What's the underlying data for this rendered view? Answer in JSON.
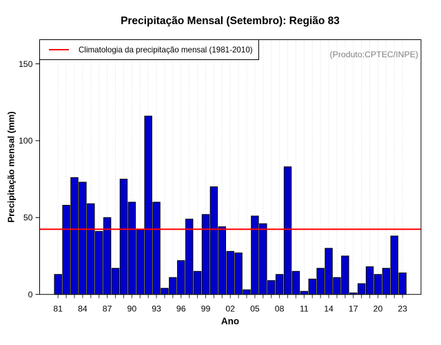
{
  "chart_data": {
    "type": "bar",
    "title": "Precipitação Mensal (Setembro): Região 83",
    "xlabel": "Ano",
    "ylabel": "Precipitação mensal (mm)",
    "ylim": [
      0,
      165
    ],
    "yticks": [
      0,
      50,
      100,
      150
    ],
    "categories": [
      "1981",
      "1982",
      "1983",
      "1984",
      "1985",
      "1986",
      "1987",
      "1988",
      "1989",
      "1990",
      "1991",
      "1992",
      "1993",
      "1994",
      "1995",
      "1996",
      "1997",
      "1998",
      "1999",
      "2000",
      "2001",
      "2002",
      "2003",
      "2004",
      "2005",
      "2006",
      "2007",
      "2008",
      "2009",
      "2010",
      "2011",
      "2012",
      "2013",
      "2014",
      "2015",
      "2016",
      "2017",
      "2018",
      "2019",
      "2020",
      "2021",
      "2022",
      "2023"
    ],
    "values": [
      13,
      58,
      76,
      73,
      59,
      41,
      50,
      17,
      75,
      60,
      42,
      116,
      60,
      4,
      11,
      22,
      49,
      15,
      52,
      70,
      44,
      28,
      27,
      3,
      51,
      46,
      9,
      13,
      83,
      15,
      2,
      10,
      17,
      30,
      11,
      25,
      1,
      7,
      18,
      13,
      17,
      38,
      14
    ],
    "xtick_labels": [
      "81",
      "84",
      "87",
      "90",
      "93",
      "96",
      "99",
      "02",
      "05",
      "08",
      "11",
      "14",
      "17",
      "20",
      "23"
    ],
    "xtick_step": 3,
    "climatology_value": 42.4,
    "legend_label": "Climatologia da precipitação mensal (1981-2010)",
    "annotation": "(Produto:CPTEC/INPE)",
    "bar_color": "#0000CD",
    "bar_border_color": "#000000",
    "line_color": "#FF0000",
    "grid": "vertical-dotted",
    "grid_color": "#d4d4d4",
    "legend_position": "top-left",
    "annotation_color": "#808080"
  }
}
